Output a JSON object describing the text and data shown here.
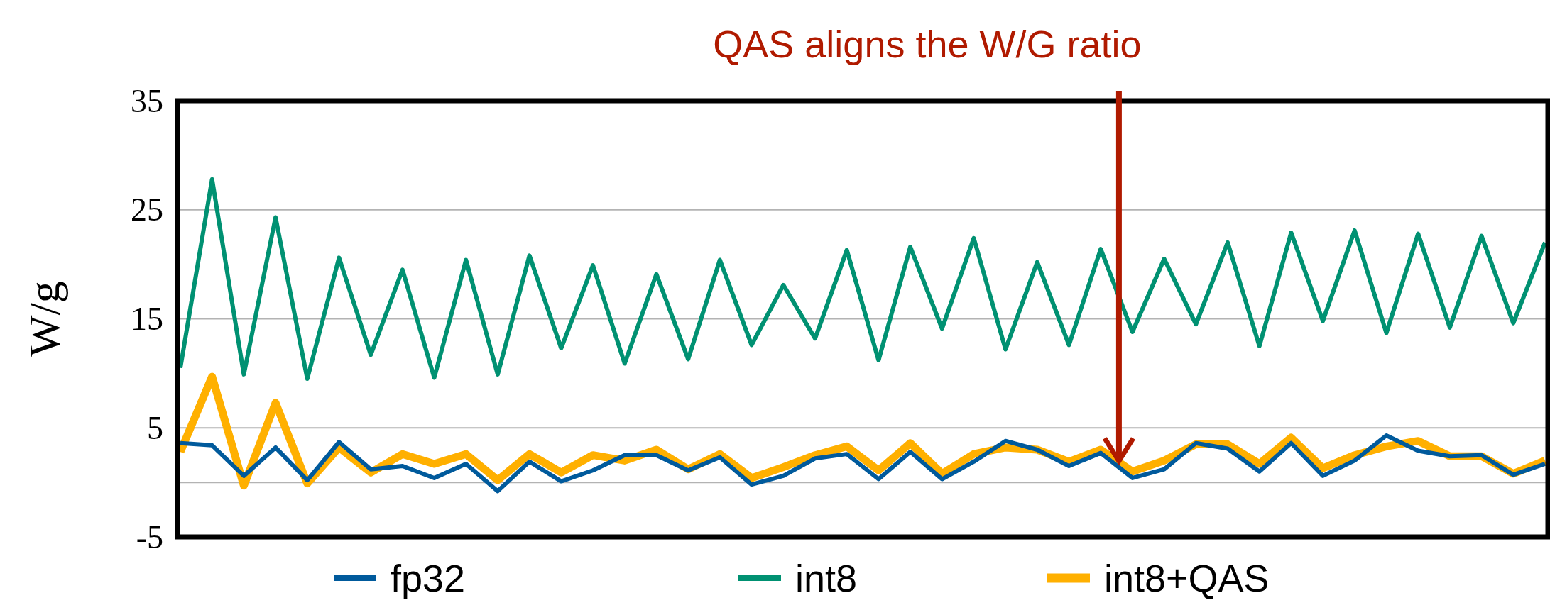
{
  "chart_data": {
    "type": "line",
    "ylabel": "W/g",
    "annotations": [
      "QAS aligns the W/G ratio"
    ],
    "categories": [
      null,
      null,
      null,
      null,
      null,
      null,
      null,
      null,
      null,
      null,
      null,
      null,
      null,
      null,
      null,
      null,
      null,
      null,
      null,
      null,
      null,
      null,
      null,
      null,
      null,
      null,
      null,
      null,
      null,
      null,
      null,
      null,
      null,
      null,
      null,
      null,
      null,
      null,
      null,
      null,
      null,
      null,
      null,
      null
    ],
    "series": [
      {
        "name": "fp32",
        "color": "#005a9c",
        "values": [
          3.6,
          3.4,
          0.6,
          3.2,
          0.2,
          3.7,
          1.2,
          1.5,
          0.4,
          1.7,
          -0.8,
          1.9,
          0.1,
          1.1,
          2.5,
          2.5,
          1.1,
          2.3,
          -0.2,
          0.6,
          2.2,
          2.6,
          0.3,
          2.8,
          0.3,
          1.9,
          3.8,
          3.0,
          1.5,
          2.7,
          0.4,
          1.2,
          3.6,
          3.1,
          1.0,
          3.6,
          0.6,
          2.0,
          4.3,
          2.9,
          2.4,
          2.5,
          0.7,
          1.7
        ]
      },
      {
        "name": "int8",
        "color": "#009172",
        "values": [
          10.5,
          27.8,
          9.9,
          24.3,
          9.5,
          20.6,
          11.7,
          19.5,
          9.6,
          20.4,
          9.9,
          20.8,
          12.3,
          19.9,
          10.9,
          19.1,
          11.3,
          20.4,
          12.6,
          18.1,
          13.2,
          21.3,
          11.2,
          21.6,
          14.1,
          22.4,
          12.2,
          20.2,
          12.6,
          21.4,
          13.8,
          20.5,
          14.5,
          22.0,
          12.5,
          22.9,
          14.8,
          23.1,
          13.7,
          22.8,
          14.2,
          22.6,
          14.6,
          22.0
        ]
      },
      {
        "name": "int8+QAS",
        "color": "#ffb000",
        "values": [
          2.8,
          9.7,
          -0.3,
          7.3,
          -0.1,
          3.2,
          0.9,
          2.6,
          1.7,
          2.6,
          0.2,
          2.6,
          0.9,
          2.5,
          2.0,
          3.0,
          1.2,
          2.6,
          0.4,
          1.4,
          2.5,
          3.3,
          1.1,
          3.6,
          0.8,
          2.6,
          3.2,
          3.0,
          1.9,
          3.0,
          1.0,
          2.0,
          3.5,
          3.5,
          1.7,
          4.1,
          1.3,
          2.5,
          3.3,
          3.8,
          2.4,
          2.4,
          0.8,
          2.0
        ]
      }
    ],
    "ylim": [
      -5,
      35
    ],
    "yticks": [
      -5,
      {
        "value": 0,
        "label": null
      },
      5,
      15,
      25,
      35
    ],
    "grid": "y",
    "legend": "bottom",
    "tick_labels": "y",
    "marker": "none",
    "line_style": "solid"
  }
}
